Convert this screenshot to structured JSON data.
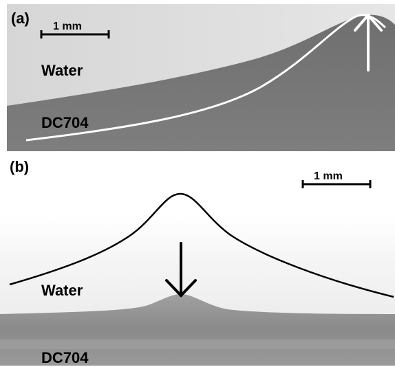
{
  "panel_a": {
    "label": "(a)",
    "scale_bar": "1 mm",
    "upper_fluid": "Water",
    "lower_fluid": "DC704",
    "arrow_direction": "up"
  },
  "panel_b": {
    "label": "(b)",
    "scale_bar": "1 mm",
    "upper_fluid": "Water",
    "lower_fluid": "DC704",
    "arrow_direction": "down"
  },
  "colors": {
    "water_a": "#d9d9d9",
    "oil_a": "#707070",
    "water_b": "#f2f2f2",
    "oil_b": "#8c8c8c"
  }
}
